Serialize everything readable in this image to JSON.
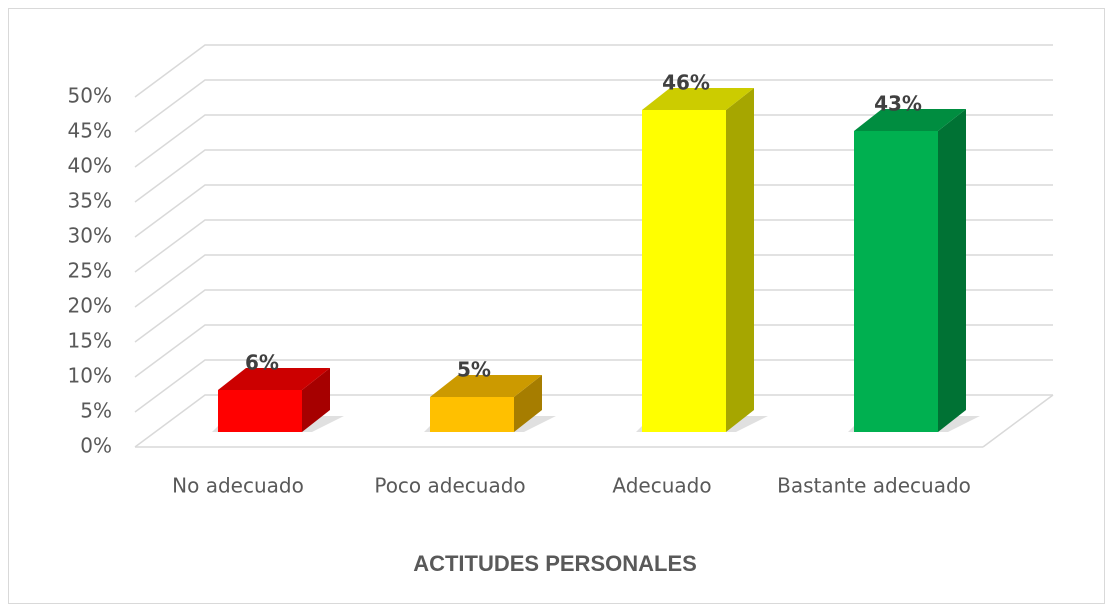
{
  "chart_data": {
    "type": "bar3d",
    "xlabel": "ACTITUDES PERSONALES",
    "categories": [
      "No adecuado",
      "Poco adecuado",
      "Adecuado",
      "Bastante adecuado"
    ],
    "values": [
      6,
      5,
      46,
      43
    ],
    "value_labels": [
      "6%",
      "5%",
      "46%",
      "43%"
    ],
    "colors": [
      "#ff0000",
      "#ffc000",
      "#ffff00",
      "#00b050"
    ],
    "ylim": [
      0,
      50
    ],
    "yticks": [
      {
        "value": 0,
        "label": "0%"
      },
      {
        "value": 5,
        "label": "5%"
      },
      {
        "value": 10,
        "label": "10%"
      },
      {
        "value": 15,
        "label": "15%"
      },
      {
        "value": 20,
        "label": "20%"
      },
      {
        "value": 25,
        "label": "25%"
      },
      {
        "value": 30,
        "label": "30%"
      },
      {
        "value": 35,
        "label": "35%"
      },
      {
        "value": 40,
        "label": "40%"
      },
      {
        "value": 45,
        "label": "45%"
      },
      {
        "value": 50,
        "label": "50%"
      }
    ],
    "grid": true
  }
}
